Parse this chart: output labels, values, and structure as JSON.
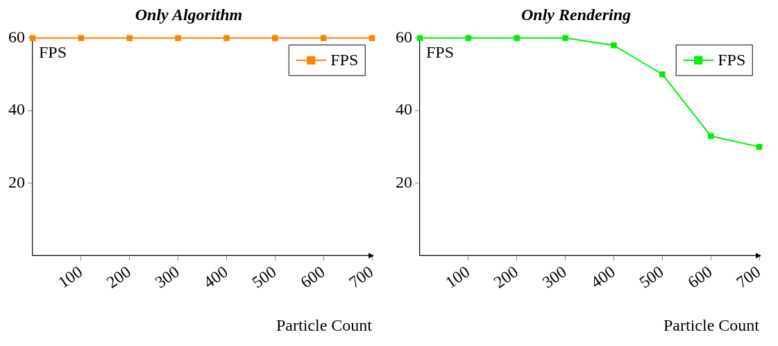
{
  "chart_data": [
    {
      "type": "line",
      "title": "Only Algorithm",
      "xlabel": "Particle Count",
      "ylabel": "FPS",
      "x": [
        0,
        100,
        200,
        300,
        400,
        500,
        600,
        700
      ],
      "series": [
        {
          "name": "FPS",
          "color": "#ff7f00",
          "values": [
            60,
            60,
            60,
            60,
            60,
            60,
            60,
            60
          ]
        }
      ],
      "xlim": [
        0,
        700
      ],
      "ylim": [
        0,
        60
      ],
      "xticks": [
        100,
        200,
        300,
        400,
        500,
        600,
        700
      ],
      "yticks": [
        20,
        40,
        60
      ],
      "legend": "top right",
      "marker": "square",
      "grid": false
    },
    {
      "type": "line",
      "title": "Only Rendering",
      "xlabel": "Particle Count",
      "ylabel": "FPS",
      "x": [
        0,
        100,
        200,
        300,
        400,
        500,
        600,
        700
      ],
      "series": [
        {
          "name": "FPS",
          "color": "#00ee00",
          "values": [
            60,
            60,
            60,
            60,
            58,
            50,
            33,
            30
          ]
        }
      ],
      "xlim": [
        0,
        700
      ],
      "ylim": [
        0,
        60
      ],
      "xticks": [
        100,
        200,
        300,
        400,
        500,
        600,
        700
      ],
      "yticks": [
        20,
        40,
        60
      ],
      "legend": "top right",
      "marker": "square",
      "grid": false
    }
  ]
}
